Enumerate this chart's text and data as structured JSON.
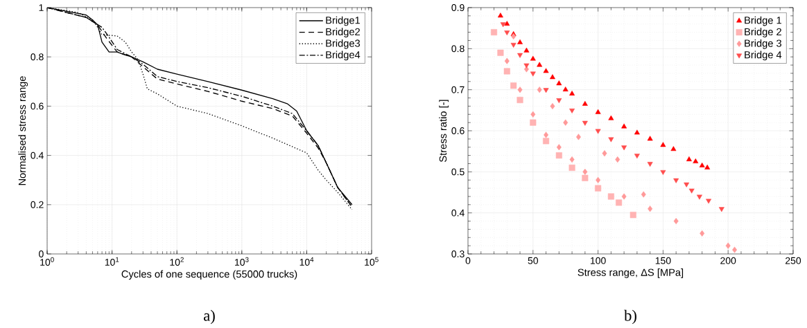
{
  "chart_data": [
    {
      "type": "line",
      "xlabel": "Cycles of one sequence (55000 trucks)",
      "ylabel": "Normalised stress range",
      "annotations": [
        "a)"
      ],
      "log": "x",
      "grid": true,
      "legend": "top right",
      "marker": "none",
      "xlim": [
        1,
        100000
      ],
      "ylim": [
        0,
        1
      ],
      "xticks": [
        {
          "value": 1,
          "label": "10$^{0}$"
        },
        {
          "value": 10,
          "label": "10$^{1}$"
        },
        {
          "value": 100,
          "label": "10$^{2}$"
        },
        {
          "value": 1000,
          "label": "10$^{3}$"
        },
        {
          "value": 10000,
          "label": "10$^{4}$"
        },
        {
          "value": 100000,
          "label": "10$^{5}$"
        }
      ],
      "yticks": [
        0,
        0.2,
        0.4,
        0.6,
        0.8,
        1
      ],
      "series": [
        {
          "name": "Bridge1",
          "color": "#000000",
          "line_style": "solid",
          "x": [
            1,
            4,
            5,
            6,
            7,
            9,
            12,
            15,
            20,
            30,
            50,
            100,
            300,
            1000,
            3000,
            5000,
            7000,
            10000,
            15000,
            20000,
            30000,
            50000
          ],
          "values": [
            1,
            0.97,
            0.95,
            0.93,
            0.86,
            0.82,
            0.82,
            0.81,
            0.8,
            0.78,
            0.75,
            0.73,
            0.7,
            0.665,
            0.63,
            0.61,
            0.58,
            0.5,
            0.44,
            0.37,
            0.27,
            0.2
          ]
        },
        {
          "name": "Bridge2",
          "color": "#000000",
          "line_style": "dashed",
          "x": [
            1,
            4,
            6,
            8,
            12,
            20,
            30,
            50,
            100,
            300,
            1000,
            3000,
            6000,
            10000,
            15000,
            20000,
            30000,
            50000
          ],
          "values": [
            1,
            0.96,
            0.93,
            0.88,
            0.82,
            0.8,
            0.76,
            0.71,
            0.69,
            0.66,
            0.62,
            0.59,
            0.56,
            0.49,
            0.43,
            0.37,
            0.27,
            0.19
          ]
        },
        {
          "name": "Bridge3",
          "color": "#000000",
          "line_style": "dotted",
          "x": [
            1,
            3,
            5,
            6,
            7,
            12,
            16,
            20,
            25,
            30,
            35,
            50,
            100,
            300,
            1000,
            3000,
            10000,
            15000,
            20000,
            30000,
            50000
          ],
          "values": [
            1,
            0.98,
            0.95,
            0.92,
            0.89,
            0.885,
            0.86,
            0.82,
            0.79,
            0.73,
            0.67,
            0.65,
            0.6,
            0.57,
            0.52,
            0.47,
            0.41,
            0.34,
            0.3,
            0.25,
            0.18
          ]
        },
        {
          "name": "Bridge4",
          "color": "#000000",
          "line_style": "dashdot",
          "x": [
            1,
            4,
            7,
            9,
            12,
            20,
            30,
            50,
            100,
            300,
            1000,
            3000,
            6000,
            10000,
            15000,
            20000,
            30000,
            47000
          ],
          "values": [
            1,
            0.96,
            0.92,
            0.88,
            0.83,
            0.8,
            0.77,
            0.72,
            0.7,
            0.675,
            0.64,
            0.6,
            0.57,
            0.5,
            0.44,
            0.37,
            0.27,
            0.2
          ]
        }
      ]
    },
    {
      "type": "scatter",
      "xlabel": "Stress range, ΔS [MPa]",
      "ylabel": "Stress ratio [-]",
      "annotations": [
        "b)"
      ],
      "grid": true,
      "legend": "top right",
      "xlim": [
        0,
        250
      ],
      "ylim": [
        0.3,
        0.9
      ],
      "xticks": [
        0,
        50,
        100,
        150,
        200,
        250
      ],
      "yticks": [
        0.3,
        0.4,
        0.5,
        0.6,
        0.7,
        0.8,
        0.9
      ],
      "series": [
        {
          "name": "Bridge 1",
          "color": "#ff0000",
          "marker": "triangle",
          "x": [
            25,
            30,
            35,
            40,
            45,
            50,
            55,
            60,
            65,
            70,
            75,
            80,
            90,
            100,
            110,
            120,
            130,
            140,
            150,
            158,
            170,
            175,
            180,
            184
          ],
          "values": [
            0.88,
            0.86,
            0.835,
            0.815,
            0.795,
            0.775,
            0.76,
            0.745,
            0.73,
            0.715,
            0.7,
            0.69,
            0.665,
            0.645,
            0.63,
            0.61,
            0.595,
            0.58,
            0.565,
            0.555,
            0.53,
            0.525,
            0.515,
            0.51
          ]
        },
        {
          "name": "Bridge 2",
          "color": "#ffb3b3",
          "marker": "square",
          "x": [
            20,
            25,
            30,
            35,
            40,
            50,
            60,
            70,
            80,
            90,
            100,
            110,
            116,
            127
          ],
          "values": [
            0.84,
            0.79,
            0.745,
            0.71,
            0.675,
            0.62,
            0.575,
            0.54,
            0.51,
            0.485,
            0.46,
            0.44,
            0.425,
            0.395
          ]
        },
        {
          "name": "Bridge 3",
          "color": "#ff9999",
          "marker": "diamond",
          "x": [
            30,
            35,
            40,
            45,
            50,
            55,
            60,
            65,
            70,
            75,
            80,
            85,
            90,
            100,
            105,
            115,
            120,
            135,
            140,
            160,
            180,
            200,
            205
          ],
          "values": [
            0.77,
            0.83,
            0.7,
            0.75,
            0.64,
            0.7,
            0.59,
            0.66,
            0.56,
            0.62,
            0.53,
            0.585,
            0.5,
            0.48,
            0.545,
            0.53,
            0.44,
            0.445,
            0.41,
            0.38,
            0.35,
            0.32,
            0.31
          ]
        },
        {
          "name": "Bridge 4",
          "color": "#ff4d4d",
          "marker": "triangle_down",
          "x": [
            27,
            30,
            35,
            40,
            45,
            50,
            60,
            70,
            80,
            90,
            100,
            110,
            120,
            130,
            140,
            150,
            160,
            168,
            172,
            178,
            185,
            195
          ],
          "values": [
            0.86,
            0.84,
            0.81,
            0.785,
            0.76,
            0.74,
            0.7,
            0.675,
            0.65,
            0.62,
            0.6,
            0.58,
            0.56,
            0.54,
            0.52,
            0.5,
            0.48,
            0.47,
            0.455,
            0.44,
            0.43,
            0.41
          ]
        }
      ]
    }
  ]
}
